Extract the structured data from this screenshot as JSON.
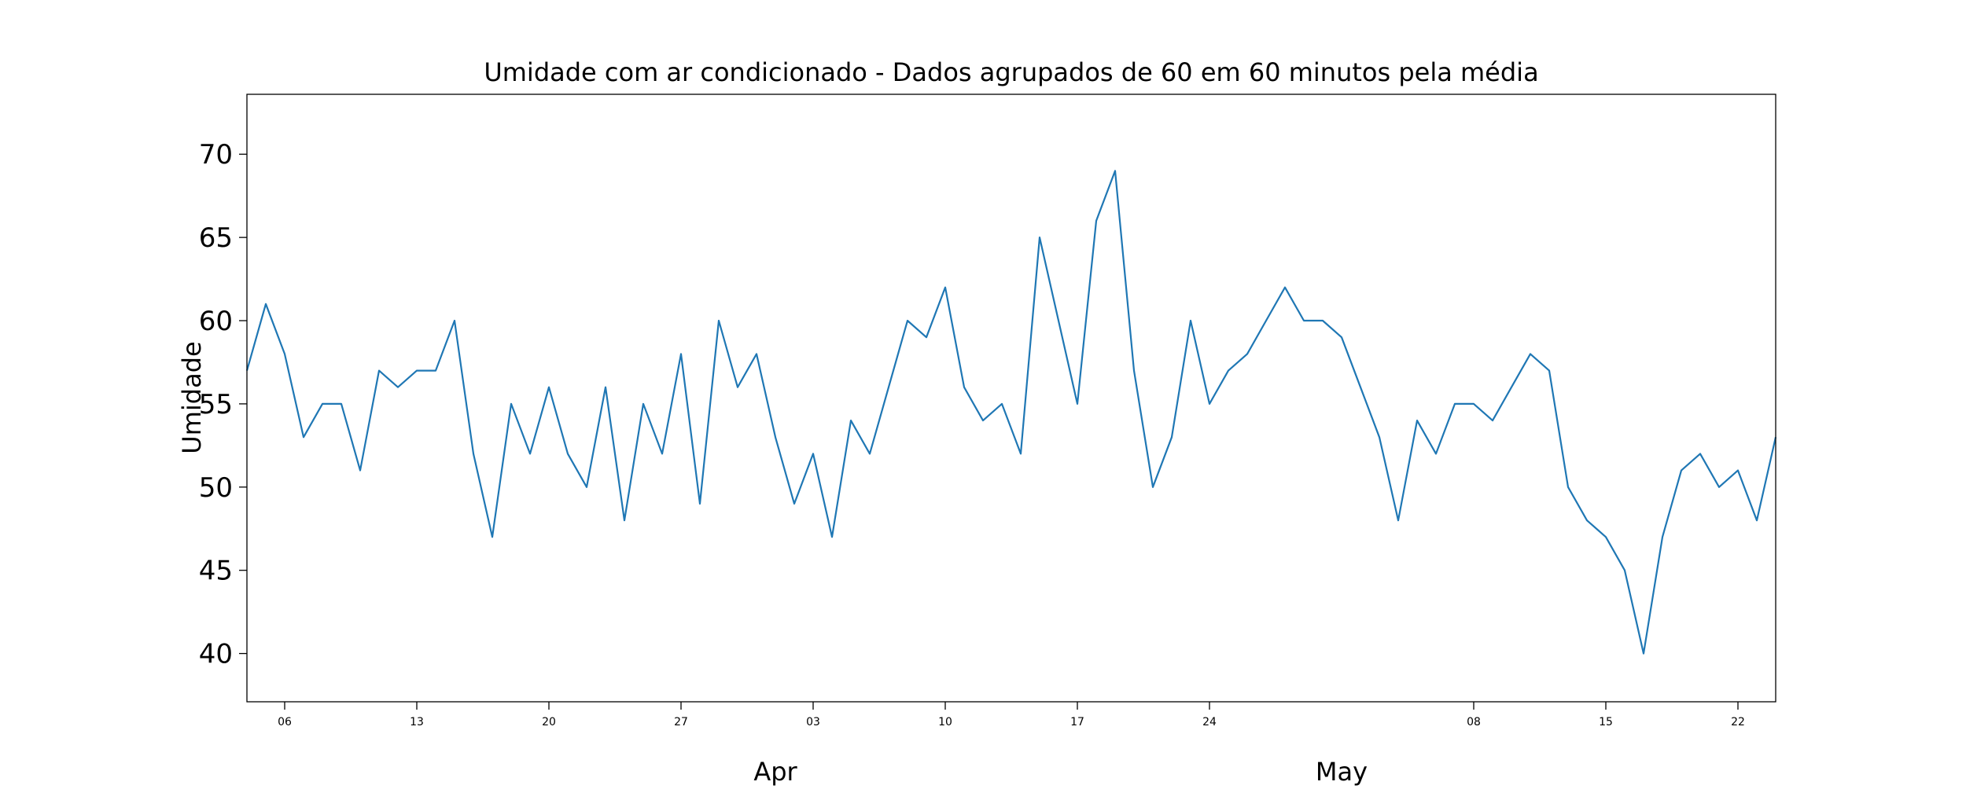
{
  "chart_data": {
    "type": "line",
    "title": "Umidade com ar condicionado - Dados agrupados de 60 em 60 minutos pela média",
    "y_label": "Umidade",
    "x": [
      "03-04",
      "03-05",
      "03-06",
      "03-07",
      "03-08",
      "03-09",
      "03-10",
      "03-11",
      "03-12",
      "03-13",
      "03-14",
      "03-15",
      "03-16",
      "03-17",
      "03-18",
      "03-19",
      "03-20",
      "03-21",
      "03-22",
      "03-23",
      "03-24",
      "03-25",
      "03-26",
      "03-27",
      "03-28",
      "03-29",
      "03-30",
      "03-31",
      "04-01",
      "04-02",
      "04-03",
      "04-04",
      "04-05",
      "04-06",
      "04-07",
      "04-08",
      "04-09",
      "04-10",
      "04-11",
      "04-12",
      "04-13",
      "04-14",
      "04-15",
      "04-16",
      "04-17",
      "04-18",
      "04-19",
      "04-20",
      "04-21",
      "04-22",
      "04-23",
      "04-24",
      "04-25",
      "04-26",
      "04-27",
      "04-28",
      "04-29",
      "04-30",
      "05-01",
      "05-02",
      "05-03",
      "05-04",
      "05-05",
      "05-06",
      "05-07",
      "05-08",
      "05-09",
      "05-10",
      "05-11",
      "05-12",
      "05-13",
      "05-14",
      "05-15",
      "05-16",
      "05-17",
      "05-18",
      "05-19",
      "05-20",
      "05-21",
      "05-22",
      "05-23",
      "05-24"
    ],
    "series": [
      {
        "color": "#1f77b4",
        "values": [
          57,
          61,
          58,
          53,
          55,
          55,
          51,
          57,
          56,
          57,
          57,
          60,
          52,
          47,
          55,
          52,
          56,
          52,
          50,
          56,
          48,
          55,
          52,
          58,
          49,
          60,
          56,
          58,
          53,
          49,
          52,
          47,
          54,
          52,
          56,
          60,
          59,
          62,
          56,
          54,
          55,
          52,
          65,
          60,
          55,
          66,
          69,
          57,
          50,
          53,
          60,
          55,
          57,
          58,
          60,
          62,
          60,
          60,
          59,
          56,
          53,
          48,
          54,
          52,
          55,
          55,
          54,
          56,
          58,
          57,
          50,
          48,
          47,
          45,
          40,
          47,
          51,
          52,
          50,
          51,
          48,
          53
        ]
      }
    ],
    "xlim": [
      "03-04",
      "05-24"
    ],
    "xticks": [
      {
        "value": "03-06",
        "label": "06"
      },
      {
        "value": "03-13",
        "label": "13"
      },
      {
        "value": "03-20",
        "label": "20"
      },
      {
        "value": "03-27",
        "label": "27"
      },
      {
        "value": "04-03",
        "label": "03"
      },
      {
        "value": "04-10",
        "label": "10"
      },
      {
        "value": "04-17",
        "label": "17"
      },
      {
        "value": "04-24",
        "label": "24"
      },
      {
        "value": "05-08",
        "label": "08"
      },
      {
        "value": "05-15",
        "label": "15"
      },
      {
        "value": "05-22",
        "label": "22"
      }
    ],
    "xticks_major": [
      {
        "value": "04-01",
        "label": "Apr"
      },
      {
        "value": "05-01",
        "label": "May"
      }
    ],
    "ylim": [
      37.1,
      73.6
    ],
    "yticks": [
      40,
      45,
      50,
      55,
      60,
      65,
      70
    ],
    "grid": false
  }
}
